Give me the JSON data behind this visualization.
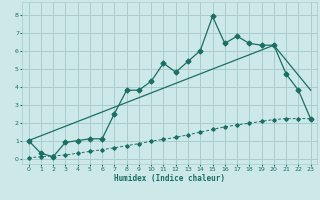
{
  "xlabel": "Humidex (Indice chaleur)",
  "xlim": [
    -0.5,
    23.5
  ],
  "ylim": [
    -0.3,
    8.7
  ],
  "xticks": [
    0,
    1,
    2,
    3,
    4,
    5,
    6,
    7,
    8,
    9,
    10,
    11,
    12,
    13,
    14,
    15,
    16,
    17,
    18,
    19,
    20,
    21,
    22,
    23
  ],
  "yticks": [
    0,
    1,
    2,
    3,
    4,
    5,
    6,
    7,
    8
  ],
  "bg_color": "#cde8e8",
  "grid_color": "#aacccc",
  "line_color": "#1a6e64",
  "line1_x": [
    0,
    1,
    2,
    3,
    4,
    5,
    6,
    7,
    8,
    9,
    10,
    11,
    12,
    13,
    14,
    15,
    16,
    17,
    18,
    19,
    20,
    21,
    22,
    23
  ],
  "line1_y": [
    1.0,
    0.3,
    0.1,
    0.9,
    1.0,
    1.1,
    1.1,
    2.5,
    3.8,
    3.8,
    4.3,
    5.3,
    4.8,
    5.4,
    6.0,
    7.9,
    6.4,
    6.8,
    6.4,
    6.3,
    6.3,
    4.7,
    3.8,
    2.2
  ],
  "line2_x": [
    0,
    20,
    23
  ],
  "line2_y": [
    1.0,
    6.3,
    3.8
  ],
  "line3_x": [
    0,
    1,
    2,
    3,
    4,
    5,
    6,
    7,
    8,
    9,
    10,
    11,
    12,
    13,
    14,
    15,
    16,
    17,
    18,
    19,
    20,
    21,
    22,
    23
  ],
  "line3_y": [
    0.05,
    0.1,
    0.15,
    0.2,
    0.3,
    0.4,
    0.5,
    0.6,
    0.72,
    0.83,
    0.97,
    1.07,
    1.18,
    1.32,
    1.47,
    1.62,
    1.77,
    1.87,
    1.97,
    2.07,
    2.17,
    2.22,
    2.22,
    2.22
  ]
}
